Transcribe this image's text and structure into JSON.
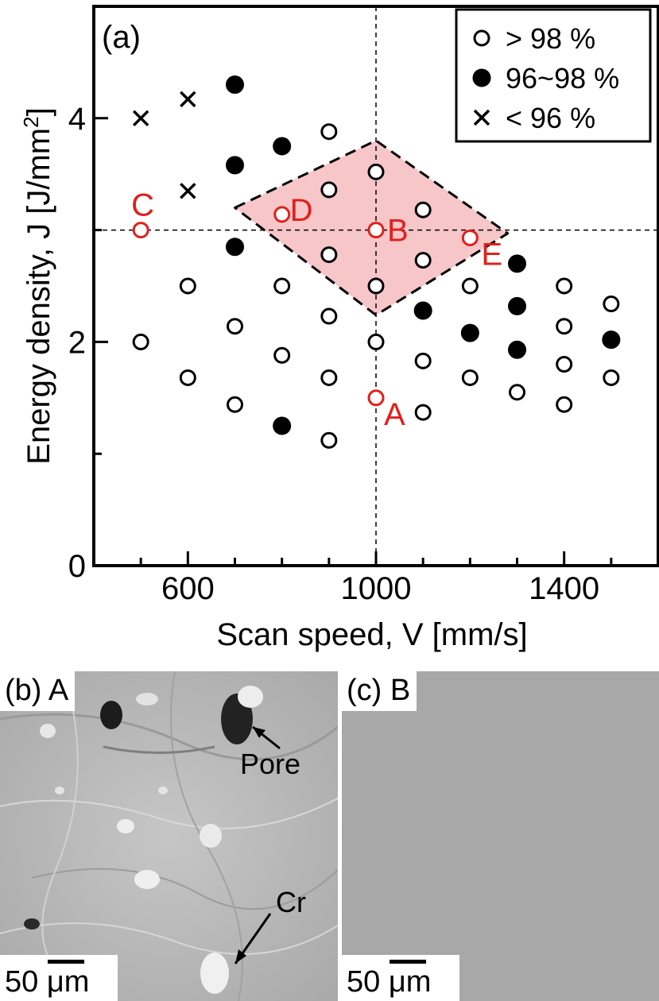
{
  "chart_data": {
    "type": "scatter",
    "panel_label": "(a)",
    "xlabel": "Scan speed, V [mm/s]",
    "ylabel_main": "Energy density, J [J/mm",
    "ylabel_sup": "2",
    "ylabel_end": "]",
    "xlim": [
      400,
      1600
    ],
    "ylim": [
      0,
      5
    ],
    "xticks": [
      600,
      1000,
      1400
    ],
    "xminor": [
      500,
      700,
      800,
      900,
      1100,
      1200,
      1300,
      1500
    ],
    "yticks": [
      0,
      2,
      4
    ],
    "yminor": [
      1,
      3
    ],
    "reference_lines": {
      "x": 1000,
      "y": 3
    },
    "legend": {
      "position": "top-right",
      "entries": [
        "> 98 %",
        "96~98 %",
        "< 96 %"
      ]
    },
    "series": [
      {
        "name": "> 98 %",
        "marker": "open-circle",
        "points": [
          [
            500,
            2.0
          ],
          [
            600,
            2.5
          ],
          [
            600,
            1.68
          ],
          [
            700,
            2.14
          ],
          [
            700,
            1.44
          ],
          [
            800,
            2.5
          ],
          [
            800,
            1.88
          ],
          [
            900,
            3.88
          ],
          [
            900,
            3.36
          ],
          [
            900,
            2.78
          ],
          [
            900,
            2.23
          ],
          [
            900,
            1.68
          ],
          [
            900,
            1.12
          ],
          [
            1000,
            3.52
          ],
          [
            1000,
            2.5
          ],
          [
            1000,
            2.0
          ],
          [
            1100,
            3.18
          ],
          [
            1100,
            2.73
          ],
          [
            1100,
            1.83
          ],
          [
            1100,
            1.37
          ],
          [
            1200,
            2.5
          ],
          [
            1200,
            1.68
          ],
          [
            1300,
            1.55
          ],
          [
            1400,
            2.5
          ],
          [
            1400,
            2.14
          ],
          [
            1400,
            1.8
          ],
          [
            1400,
            1.44
          ],
          [
            1500,
            2.34
          ],
          [
            1500,
            1.68
          ]
        ]
      },
      {
        "name": "96~98 %",
        "marker": "filled-circle",
        "points": [
          [
            700,
            4.3
          ],
          [
            700,
            3.58
          ],
          [
            700,
            2.85
          ],
          [
            800,
            3.75
          ],
          [
            800,
            1.25
          ],
          [
            1100,
            2.28
          ],
          [
            1200,
            2.08
          ],
          [
            1300,
            2.7
          ],
          [
            1300,
            2.32
          ],
          [
            1300,
            1.93
          ],
          [
            1500,
            2.02
          ]
        ]
      },
      {
        "name": "< 96 %",
        "marker": "cross",
        "points": [
          [
            500,
            4.0
          ],
          [
            600,
            4.17
          ],
          [
            600,
            3.35
          ]
        ]
      }
    ],
    "labeled_points": [
      {
        "label": "A",
        "x": 1000,
        "y": 1.5
      },
      {
        "label": "B",
        "x": 1000,
        "y": 3.0
      },
      {
        "label": "C",
        "x": 500,
        "y": 3.0
      },
      {
        "label": "D",
        "x": 800,
        "y": 3.14
      },
      {
        "label": "E",
        "x": 1200,
        "y": 2.93
      }
    ],
    "highlight_region": [
      [
        700,
        3.2
      ],
      [
        1000,
        3.8
      ],
      [
        1280,
        2.97
      ],
      [
        1000,
        2.24
      ]
    ],
    "colors": {
      "highlight": "#f7c6c9",
      "label_red": "#e0201c"
    }
  },
  "panels": [
    {
      "label": "(b) A",
      "scale": "50 μm",
      "annotations": [
        "Pore",
        "Cr"
      ]
    },
    {
      "label": "(c) B",
      "scale": "50 μm"
    }
  ]
}
